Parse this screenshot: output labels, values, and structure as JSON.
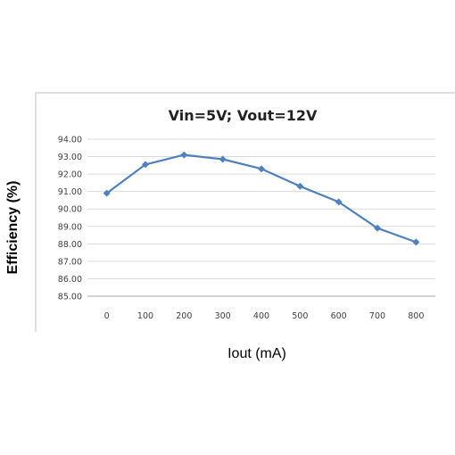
{
  "chart_data": {
    "type": "line",
    "title": "Vin=5V; Vout=12V",
    "xlabel": "Iout (mA)",
    "ylabel": "Efficiency (%)",
    "categories": [
      "0",
      "100",
      "200",
      "300",
      "400",
      "500",
      "600",
      "700",
      "800"
    ],
    "series": [
      {
        "values": [
          90.9,
          92.55,
          93.1,
          92.85,
          92.3,
          91.3,
          90.4,
          88.9,
          88.1
        ],
        "color": "#4f81bd"
      }
    ],
    "ylim": [
      85,
      94
    ],
    "yticks": [
      "85.00",
      "86.00",
      "87.00",
      "88.00",
      "89.00",
      "90.00",
      "91.00",
      "92.00",
      "93.00",
      "94.00"
    ],
    "grid": true,
    "legend": "none",
    "marker": "diamond"
  }
}
